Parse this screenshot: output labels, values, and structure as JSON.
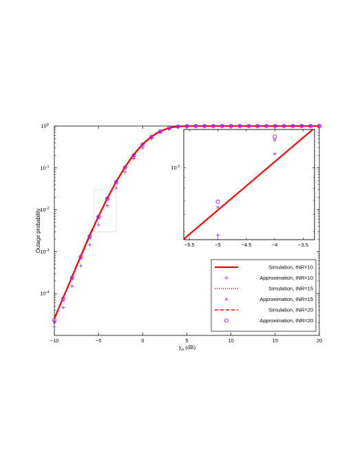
{
  "chart_data": {
    "type": "line",
    "title": "",
    "xlabel": "γ_th (dB)",
    "xlabel_main": "γ",
    "xlabel_sub": "th",
    "xlabel_unit": "(dB)",
    "ylabel": "Outage probability",
    "yscale": "log",
    "xlim": [
      -10,
      20
    ],
    "ylim_exp": [
      -5,
      0
    ],
    "grid": false,
    "legend_position": "lower-right",
    "xticks": [
      -10,
      -5,
      0,
      5,
      10,
      15,
      20
    ],
    "xtick_labels": [
      "−10",
      "−5",
      "0",
      "5",
      "10",
      "15",
      "20"
    ],
    "ytick_exps": [
      -4,
      -3,
      -2,
      -1,
      0
    ],
    "ytick_base": "10",
    "ytick_sup": [
      "-4",
      "-3",
      "-2",
      "-1",
      "0"
    ],
    "series": [
      {
        "name": "Simulation, INR=10",
        "style": "solid",
        "color": "#ff0000",
        "x": [
          -10,
          -9.5,
          -9,
          -8.5,
          -8,
          -7.5,
          -7,
          -6.5,
          -6,
          -5.5,
          -5,
          -4.5,
          -4,
          -3.5,
          -3,
          -2.5,
          -2,
          -1.5,
          -1,
          -0.5,
          0,
          0.5,
          1,
          1.5,
          2,
          2.5,
          3,
          3.5,
          4,
          5,
          6,
          8,
          10,
          12,
          14,
          16,
          18,
          20
        ],
        "y": [
          2.5e-05,
          4.5e-05,
          8e-05,
          0.00014,
          0.00025,
          0.00045,
          0.0008,
          0.0014,
          0.0025,
          0.0042,
          0.007,
          0.0115,
          0.019,
          0.03,
          0.047,
          0.07,
          0.105,
          0.15,
          0.21,
          0.28,
          0.37,
          0.46,
          0.56,
          0.66,
          0.75,
          0.83,
          0.9,
          0.95,
          0.98,
          0.995,
          1,
          1,
          1,
          1,
          1,
          1,
          1,
          1
        ]
      },
      {
        "name": "Approximation, INR=10",
        "style": "marker-plus",
        "color": "#a020f0",
        "x": [
          -10,
          -9,
          -8,
          -7,
          -6,
          -5,
          -4,
          -3,
          -2,
          -1,
          0,
          1,
          2,
          3,
          4,
          5,
          6,
          7,
          8,
          9,
          10,
          11,
          12,
          13,
          14,
          15,
          16,
          17,
          18,
          19,
          20
        ],
        "y": [
          1.6e-05,
          4.6e-05,
          0.00015,
          0.00046,
          0.00145,
          0.0044,
          0.0125,
          0.033,
          0.08,
          0.165,
          0.3,
          0.5,
          0.7,
          0.85,
          0.95,
          0.99,
          1,
          1,
          1,
          1,
          1,
          1,
          1,
          1,
          1,
          1,
          1,
          1,
          1,
          1,
          1
        ]
      },
      {
        "name": "Simulation, INR=15",
        "style": "dotted",
        "color": "#ff0000",
        "x": [
          -10,
          -9,
          -8,
          -7,
          -6,
          -5,
          -4,
          -3,
          -2,
          -1,
          0,
          1,
          2,
          3,
          4,
          5,
          6,
          8,
          10,
          15,
          20
        ],
        "y": [
          2.6e-05,
          7.8e-05,
          0.00024,
          0.00076,
          0.0023,
          0.0068,
          0.0185,
          0.046,
          0.102,
          0.2,
          0.36,
          0.55,
          0.74,
          0.89,
          0.97,
          0.995,
          1,
          1,
          1,
          1,
          1
        ]
      },
      {
        "name": "Approximation, INR=15",
        "style": "marker-x",
        "color": "#a020f0",
        "x": [
          -10,
          -9,
          -8,
          -7,
          -6,
          -5,
          -4,
          -3,
          -2,
          -1,
          0,
          1,
          2,
          3,
          4,
          5,
          6,
          7,
          8,
          9,
          10,
          11,
          12,
          13,
          14,
          15,
          16,
          17,
          18,
          19,
          20
        ],
        "y": [
          2.1e-05,
          6.8e-05,
          0.00022,
          0.00068,
          0.0021,
          0.0064,
          0.018,
          0.044,
          0.098,
          0.195,
          0.35,
          0.54,
          0.73,
          0.88,
          0.96,
          0.995,
          1,
          1,
          1,
          1,
          1,
          1,
          1,
          1,
          1,
          1,
          1,
          1,
          1,
          1,
          1
        ]
      },
      {
        "name": "Simulation, INR=20",
        "style": "dashed",
        "color": "#ff0000",
        "x": [
          -10,
          -9,
          -8,
          -7,
          -6,
          -5,
          -4,
          -3,
          -2,
          -1,
          0,
          1,
          2,
          3,
          4,
          5,
          6,
          8,
          10,
          15,
          20
        ],
        "y": [
          2.6e-05,
          7.8e-05,
          0.000245,
          0.00077,
          0.00235,
          0.0069,
          0.019,
          0.047,
          0.104,
          0.205,
          0.365,
          0.56,
          0.745,
          0.89,
          0.97,
          0.995,
          1,
          1,
          1,
          1,
          1
        ]
      },
      {
        "name": "Approximation, INR=20",
        "style": "marker-circle",
        "color": "#a020f0",
        "x": [
          -10,
          -9,
          -8,
          -7,
          -6,
          -5,
          -4,
          -3,
          -2,
          -1,
          0,
          1,
          2,
          3,
          4,
          5,
          6,
          7,
          8,
          9,
          10,
          11,
          12,
          13,
          14,
          15,
          16,
          17,
          18,
          19,
          20
        ],
        "y": [
          2.3e-05,
          7.5e-05,
          0.00024,
          0.00075,
          0.0023,
          0.0068,
          0.0185,
          0.046,
          0.102,
          0.2,
          0.36,
          0.55,
          0.74,
          0.89,
          0.97,
          0.995,
          1,
          1,
          1,
          1,
          1,
          1,
          1,
          1,
          1,
          1,
          1,
          1,
          1,
          1,
          1
        ]
      }
    ],
    "inset": {
      "xlim": [
        -5.6,
        -3.3
      ],
      "ylog_range": [
        -2.34,
        -1.82
      ],
      "xticks": [
        -5.5,
        -5,
        -4.5,
        -4,
        -3.5
      ],
      "xtick_labels": [
        "−5.5",
        "−5",
        "−4.5",
        "−4",
        "−3.5"
      ],
      "ytick_exps": [
        -2
      ],
      "ytick_base": "10",
      "ytick_sup": [
        "-2"
      ],
      "zoom_box_x": [
        -5.5,
        -3
      ],
      "zoom_box_y": [
        0.003,
        0.03
      ],
      "line_x": [
        -5.6,
        -3.25
      ],
      "line_y": [
        0.0046,
        0.0158
      ],
      "plus": [
        [
          -5,
          0.0048
        ],
        [
          -4,
          0.0116
        ]
      ],
      "xmark": [
        [
          -5,
          0.0065
        ],
        [
          -4,
          0.0135
        ]
      ],
      "circle": [
        [
          -5,
          0.0069
        ],
        [
          -4,
          0.014
        ]
      ]
    }
  }
}
